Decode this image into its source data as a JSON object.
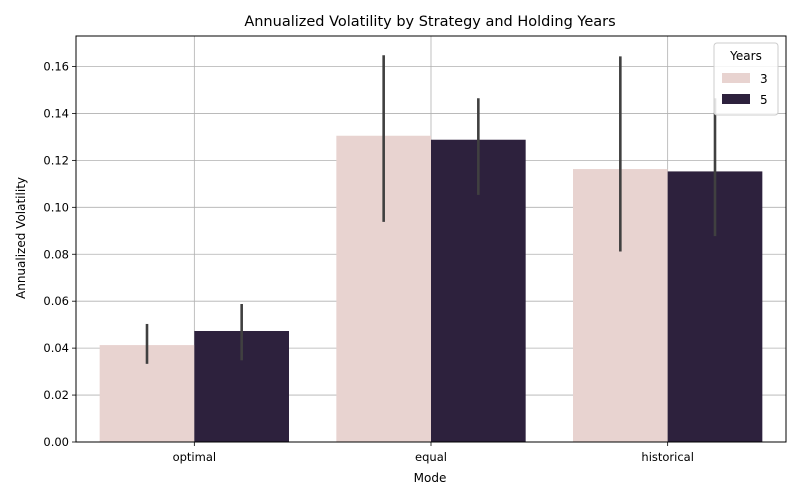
{
  "chart_data": {
    "type": "bar",
    "title": "Annualized Volatility by Strategy and Holding Years",
    "xlabel": "Mode",
    "ylabel": "Annualized Volatility",
    "categories": [
      "optimal",
      "equal",
      "historical"
    ],
    "ylim": [
      0,
      0.173
    ],
    "yticks": [
      "0.00",
      "0.02",
      "0.04",
      "0.06",
      "0.08",
      "0.10",
      "0.12",
      "0.14",
      "0.16"
    ],
    "grid": true,
    "legend": {
      "title": "Years",
      "position": "top-right"
    },
    "series": [
      {
        "name": "3",
        "color": "#e8d3d0",
        "values": [
          0.0413,
          0.1305,
          0.1163
        ],
        "ci_low": [
          0.0333,
          0.0938,
          0.0812
        ],
        "ci_high": [
          0.0503,
          0.1648,
          0.1643
        ]
      },
      {
        "name": "5",
        "color": "#2d213d",
        "values": [
          0.0473,
          0.1288,
          0.1153
        ],
        "ci_low": [
          0.0348,
          0.1053,
          0.0877
        ],
        "ci_high": [
          0.0588,
          0.1465,
          0.1465
        ]
      }
    ],
    "errorbar_color": "#404040"
  }
}
